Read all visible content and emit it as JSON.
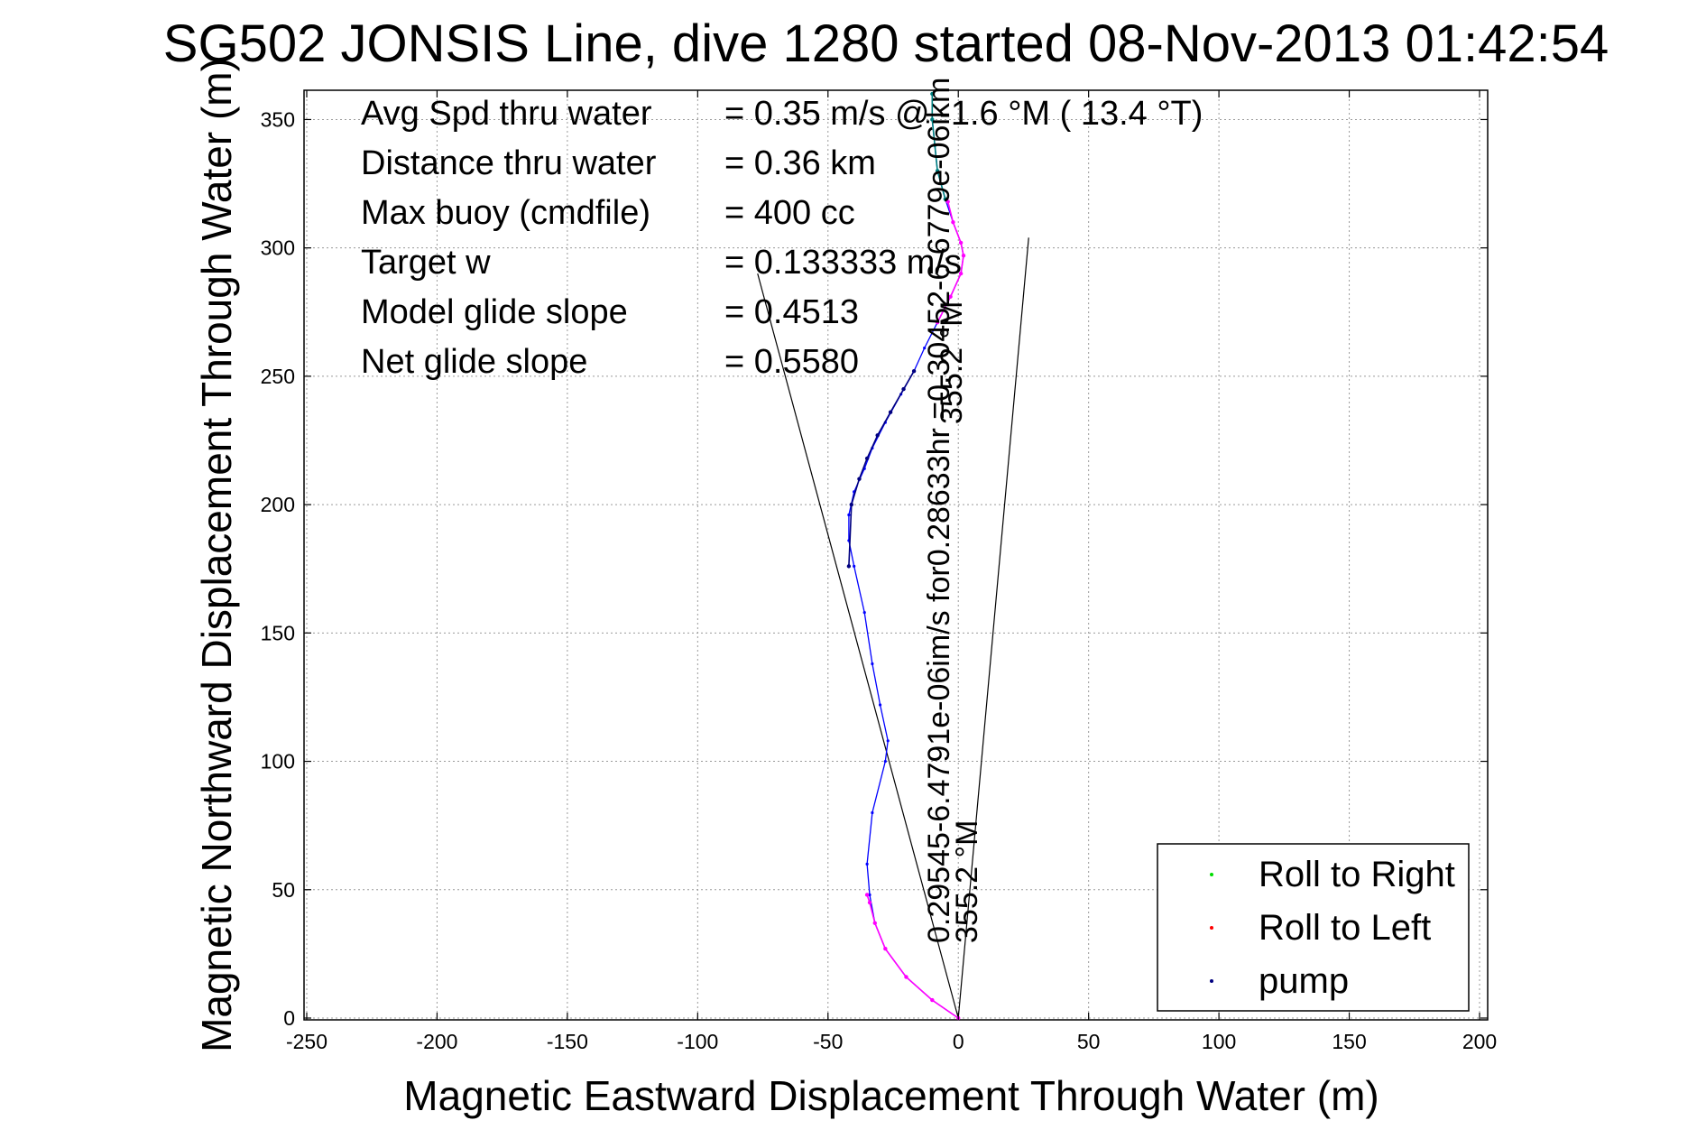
{
  "chart_data": {
    "type": "line",
    "title": "SG502 JONSIS Line, dive 1280 started 08-Nov-2013 01:42:54",
    "xlabel": "Magnetic Eastward Displacement Through Water (m)",
    "ylabel": "Magnetic Northward Displacement Through Water (m)",
    "xlim": [
      -250,
      200
    ],
    "ylim": [
      0,
      360
    ],
    "xticks": [
      -250,
      -200,
      -150,
      -100,
      -50,
      0,
      50,
      100,
      150,
      200
    ],
    "yticks": [
      0,
      50,
      100,
      150,
      200,
      250,
      300,
      350
    ],
    "xtick_labels": [
      "-250",
      "-200",
      "-150",
      "-100",
      "-50",
      "0",
      "50",
      "100",
      "150",
      "200"
    ],
    "ytick_labels": [
      "0",
      "50",
      "100",
      "150",
      "200",
      "250",
      "300",
      "350"
    ],
    "grid": true,
    "info_lines": [
      {
        "label": "Avg Spd thru water",
        "value": "=  0.35 m/s @  -1.6 °M ( 13.4 °T)"
      },
      {
        "label": "Distance thru water",
        "value": "=  0.36 km"
      },
      {
        "label": "Max buoy (cmdfile)",
        "value": "= 400 cc"
      },
      {
        "label": "Target w",
        "value": "= 0.133333 m/s"
      },
      {
        "label": "Model glide slope",
        "value": "= 0.4513"
      },
      {
        "label": "Net glide slope",
        "value": "= 0.5580"
      }
    ],
    "legend": {
      "position": "bottom-right",
      "entries": [
        {
          "name": "Roll to Right",
          "color": "#00dd00"
        },
        {
          "name": "Roll to Left",
          "color": "#ff0000"
        },
        {
          "name": "pump",
          "color": "#000080"
        }
      ]
    },
    "annotations": [
      "0.29545-6.4791e-06im/s for0.28633hr =0.30452-6.6779e-06ikm",
      "355.2 °M",
      "355.2 °M"
    ],
    "reference_lines": [
      {
        "name": "left-bound-line",
        "x": [
          0,
          -77
        ],
        "y": [
          0,
          290
        ]
      },
      {
        "name": "right-bound-line",
        "x": [
          0,
          27
        ],
        "y": [
          0,
          304
        ]
      }
    ],
    "series": [
      {
        "color": "#0000ff",
        "x": [
          0,
          -10,
          -20,
          -28,
          -32,
          -34,
          -35,
          -33,
          -28,
          -27,
          -30,
          -33,
          -36,
          -40,
          -42,
          -42,
          -40,
          -36,
          -33,
          -28,
          -22,
          -17,
          -13,
          -8,
          -3,
          1,
          2,
          1,
          -2,
          -5,
          -8,
          -9,
          -10,
          -10
        ],
        "y": [
          0,
          7,
          16,
          27,
          37,
          48,
          60,
          80,
          100,
          108,
          122,
          138,
          158,
          176,
          186,
          196,
          205,
          214,
          222,
          232,
          243,
          252,
          261,
          271,
          281,
          290,
          297,
          302,
          310,
          319,
          330,
          340,
          350,
          360
        ]
      },
      {
        "color": "#ff00ff",
        "x": [
          0,
          -10,
          -20,
          -28,
          -32,
          -34,
          -35
        ],
        "y": [
          0,
          7,
          16,
          27,
          37,
          45,
          48
        ]
      },
      {
        "color": "#ff00ff",
        "x": [
          -8,
          -3,
          1,
          2,
          1,
          -2,
          -4
        ],
        "y": [
          271,
          281,
          290,
          297,
          302,
          310,
          318
        ]
      },
      {
        "color": "#008080",
        "x": [
          -5,
          -8,
          -9,
          -10,
          -10
        ],
        "y": [
          319,
          330,
          340,
          350,
          360
        ]
      },
      {
        "color": "#000080",
        "x": [
          -42,
          -41,
          -38,
          -35,
          -31,
          -26,
          -21,
          -17
        ],
        "y": [
          176,
          200,
          210,
          218,
          227,
          236,
          245,
          252
        ]
      }
    ]
  }
}
